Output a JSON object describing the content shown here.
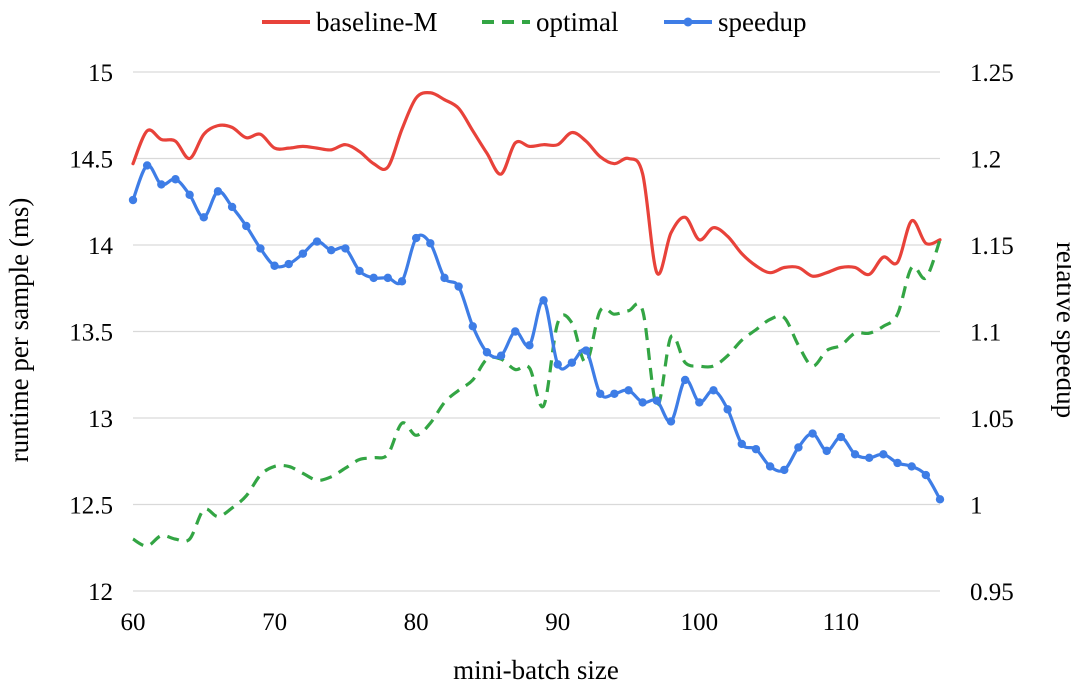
{
  "chart_data": {
    "type": "line",
    "title": "",
    "xlabel": "mini-batch size",
    "ylabel_left": "runtime per sample (ms)",
    "ylabel_right": "relative speedup",
    "xlim": [
      60,
      117
    ],
    "ylim_left": [
      12,
      15
    ],
    "ylim_right": [
      0.95,
      1.25
    ],
    "x_ticks": [
      "60",
      "70",
      "80",
      "90",
      "100",
      "110"
    ],
    "y_ticks_left": [
      "12",
      "12.5",
      "13",
      "13.5",
      "14",
      "14.5",
      "15"
    ],
    "y_ticks_right": [
      "0.95",
      "1",
      "1.05",
      "1.1",
      "1.15",
      "1.2",
      "1.25"
    ],
    "grid": "horizontal",
    "legend_position": "top",
    "colors": {
      "baseline": "#e8423a",
      "optimal": "#33a544",
      "speedup": "#3e7de6"
    },
    "x": [
      60,
      61,
      62,
      63,
      64,
      65,
      66,
      67,
      68,
      69,
      70,
      71,
      72,
      73,
      74,
      75,
      76,
      77,
      78,
      79,
      80,
      81,
      82,
      83,
      84,
      85,
      86,
      87,
      88,
      89,
      90,
      91,
      92,
      93,
      94,
      95,
      96,
      97,
      98,
      99,
      100,
      101,
      102,
      103,
      104,
      105,
      106,
      107,
      108,
      109,
      110,
      111,
      112,
      113,
      114,
      115,
      116,
      117
    ],
    "series": [
      {
        "name": "baseline-M",
        "axis": "left",
        "style": "solid",
        "values": [
          14.47,
          14.66,
          14.61,
          14.6,
          14.5,
          14.64,
          14.69,
          14.68,
          14.62,
          14.64,
          14.56,
          14.56,
          14.57,
          14.56,
          14.55,
          14.58,
          14.54,
          14.47,
          14.45,
          14.67,
          14.85,
          14.88,
          14.84,
          14.79,
          14.66,
          14.53,
          14.41,
          14.59,
          14.57,
          14.58,
          14.58,
          14.65,
          14.6,
          14.51,
          14.47,
          14.5,
          14.41,
          13.84,
          14.07,
          14.16,
          14.03,
          14.1,
          14.05,
          13.95,
          13.88,
          13.84,
          13.87,
          13.87,
          13.82,
          13.84,
          13.87,
          13.87,
          13.83,
          13.93,
          13.9,
          14.14,
          14.01,
          14.03
        ]
      },
      {
        "name": "optimal",
        "axis": "left",
        "style": "dashed",
        "values": [
          12.3,
          12.26,
          12.32,
          12.3,
          12.3,
          12.47,
          12.43,
          12.48,
          12.55,
          12.67,
          12.72,
          12.72,
          12.68,
          12.64,
          12.66,
          12.71,
          12.76,
          12.77,
          12.79,
          12.97,
          12.9,
          12.97,
          13.09,
          13.16,
          13.22,
          13.34,
          13.34,
          13.28,
          13.29,
          13.07,
          13.55,
          13.55,
          13.32,
          13.62,
          13.6,
          13.62,
          13.62,
          13.07,
          13.47,
          13.32,
          13.3,
          13.3,
          13.36,
          13.45,
          13.51,
          13.57,
          13.58,
          13.42,
          13.3,
          13.39,
          13.42,
          13.49,
          13.49,
          13.53,
          13.6,
          13.87,
          13.81,
          14.03
        ]
      },
      {
        "name": "speedup",
        "axis": "right",
        "style": "solid-marker",
        "values": [
          1.176,
          1.196,
          1.185,
          1.188,
          1.179,
          1.166,
          1.181,
          1.172,
          1.161,
          1.148,
          1.138,
          1.139,
          1.145,
          1.152,
          1.147,
          1.148,
          1.135,
          1.131,
          1.131,
          1.129,
          1.154,
          1.151,
          1.131,
          1.126,
          1.103,
          1.088,
          1.086,
          1.1,
          1.092,
          1.118,
          1.081,
          1.082,
          1.089,
          1.064,
          1.064,
          1.066,
          1.059,
          1.06,
          1.048,
          1.072,
          1.059,
          1.066,
          1.055,
          1.035,
          1.032,
          1.022,
          1.02,
          1.033,
          1.041,
          1.031,
          1.039,
          1.029,
          1.027,
          1.029,
          1.024,
          1.022,
          1.017,
          1.003
        ]
      }
    ]
  }
}
